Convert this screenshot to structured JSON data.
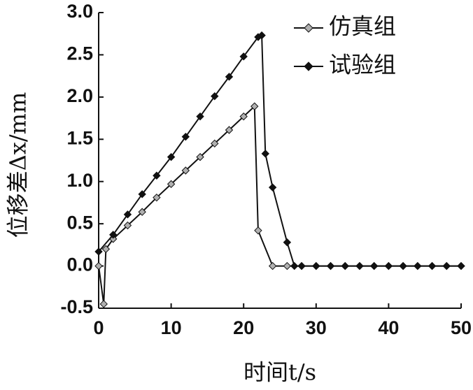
{
  "chart_data": {
    "type": "line",
    "xlabel": "时间t/s",
    "ylabel": "位移差Δx/mm",
    "xlim": [
      0,
      50
    ],
    "xticks": [
      0,
      10,
      20,
      30,
      40,
      50
    ],
    "ylim": [
      -0.5,
      3.0
    ],
    "yticks": [
      -0.5,
      {
        "value": 0,
        "label": "0.0"
      },
      0.5,
      {
        "value": 1,
        "label": "1.0"
      },
      1.5,
      {
        "value": 2,
        "label": "2.0"
      },
      2.5,
      {
        "value": 3,
        "label": "3.0"
      }
    ],
    "legend": "top-right",
    "series": [
      {
        "name": "仿真组",
        "color": "#b0b0b0",
        "x": [
          0,
          0.7,
          1,
          2,
          4,
          6,
          8,
          10,
          12,
          14,
          16,
          18,
          20,
          21.5,
          22,
          24,
          26,
          28,
          30,
          32,
          34,
          36,
          38,
          40,
          42,
          44,
          46,
          48,
          50
        ],
        "values": [
          0,
          -0.45,
          0.2,
          0.32,
          0.48,
          0.64,
          0.81,
          0.97,
          1.13,
          1.29,
          1.45,
          1.61,
          1.77,
          1.89,
          0.42,
          0,
          0,
          0,
          0,
          0,
          0,
          0,
          0,
          0,
          0,
          0,
          0,
          0,
          0
        ]
      },
      {
        "name": "试验组",
        "color": "#111111",
        "x": [
          0,
          2,
          4,
          6,
          8,
          10,
          12,
          14,
          16,
          18,
          20,
          22,
          22.5,
          23,
          24,
          26,
          27,
          28,
          30,
          32,
          34,
          36,
          38,
          40,
          42,
          44,
          46,
          48,
          50
        ],
        "values": [
          0.17,
          0.37,
          0.61,
          0.85,
          1.07,
          1.29,
          1.53,
          1.77,
          2.01,
          2.24,
          2.48,
          2.71,
          2.73,
          1.33,
          0.93,
          0.28,
          0,
          0,
          0,
          0,
          0,
          0,
          0,
          0,
          0,
          0,
          0,
          0,
          0
        ]
      }
    ]
  }
}
